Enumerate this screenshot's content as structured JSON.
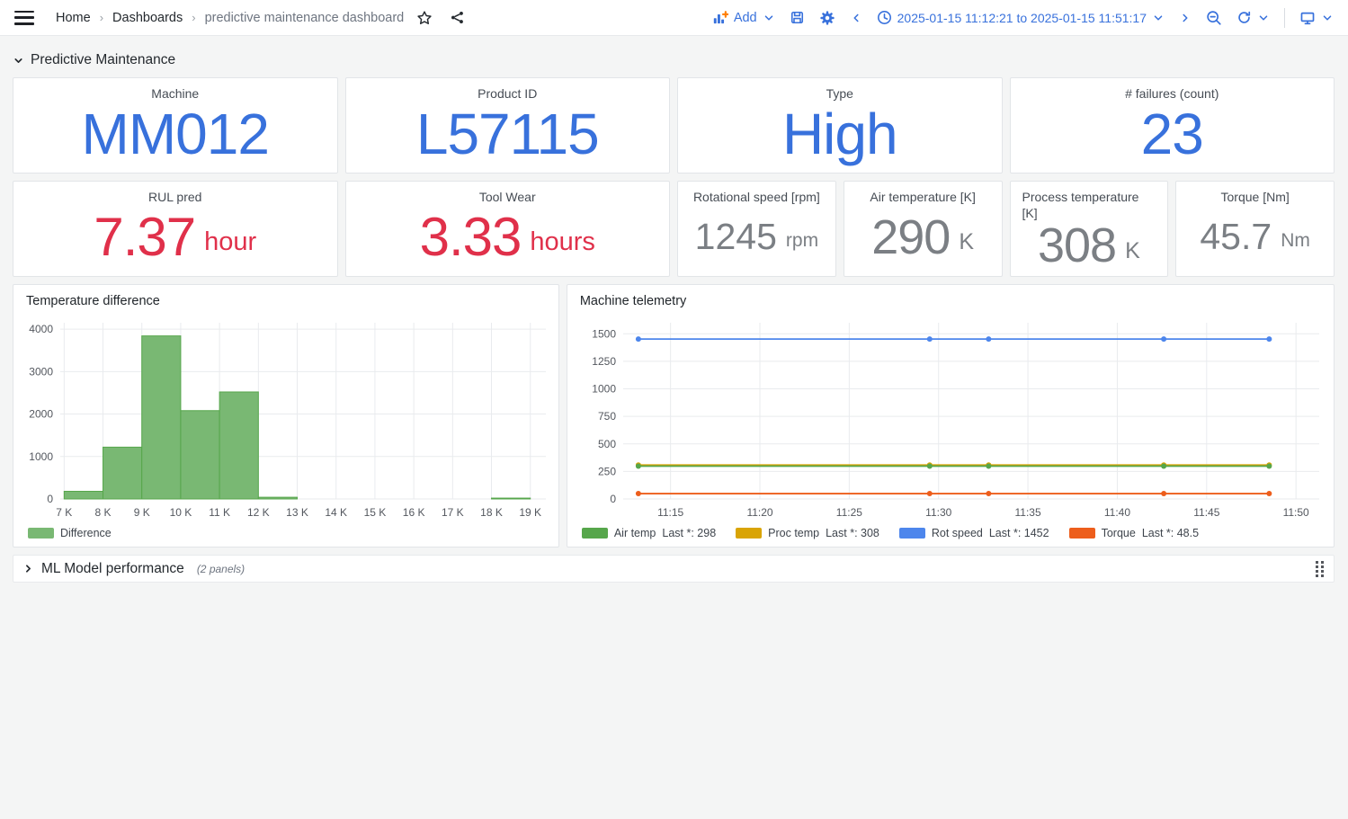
{
  "nav": {
    "breadcrumb": {
      "home": "Home",
      "dashboards": "Dashboards",
      "current": "predictive maintenance dashboard"
    },
    "add_label": "Add",
    "time_range_label": "2025-01-15 11:12:21 to 2025-01-15 11:51:17"
  },
  "rows": {
    "maintenance": {
      "title": "Predictive Maintenance"
    },
    "ml": {
      "title": "ML Model performance",
      "note": "(2 panels)"
    }
  },
  "colors": {
    "accent_blue": "#3871DC",
    "stat_red": "#E0304A",
    "stat_gray": "#7B7F84",
    "plus_orange": "#FF7F00"
  },
  "stats": [
    {
      "title": "Machine",
      "value": "MM012",
      "unit": "",
      "color": "#3871DC"
    },
    {
      "title": "Product ID",
      "value": "L57115",
      "unit": "",
      "color": "#3871DC"
    },
    {
      "title": "Type",
      "value": "High",
      "unit": "",
      "color": "#3871DC"
    },
    {
      "title": "# failures (count)",
      "value": "23",
      "unit": "",
      "color": "#3871DC"
    },
    {
      "title": "RUL pred",
      "value": "7.37",
      "unit": "hour",
      "color": "#E0304A"
    },
    {
      "title": "Tool Wear",
      "value": "3.33",
      "unit": "hours",
      "color": "#E0304A"
    },
    {
      "title": "Rotational speed [rpm]",
      "value": "1245",
      "unit": "rpm",
      "color": "#7B7F84"
    },
    {
      "title": "Air temperature [K]",
      "value": "290",
      "unit": "K",
      "color": "#7B7F84"
    },
    {
      "title": "Process temperature [K]",
      "value": "308",
      "unit": "K",
      "color": "#7B7F84"
    },
    {
      "title": "Torque [Nm]",
      "value": "45.7",
      "unit": "Nm",
      "color": "#7B7F84"
    }
  ],
  "chart_data": [
    {
      "type": "bar",
      "title": "Temperature difference",
      "series_name": "Difference",
      "bin_start": 7000,
      "bin_width": 1000,
      "categories": [
        "7 K",
        "8 K",
        "9 K",
        "10 K",
        "11 K",
        "12 K",
        "13 K",
        "14 K",
        "15 K",
        "16 K",
        "17 K",
        "18 K",
        "19 K"
      ],
      "values": [
        180,
        1220,
        3840,
        2080,
        2520,
        40,
        0,
        0,
        0,
        0,
        0,
        20
      ],
      "xlabel": "",
      "ylabel": "",
      "yticks": [
        0,
        1000,
        2000,
        3000,
        4000
      ],
      "ylim": [
        0,
        4150
      ],
      "bar_color": "#79B873",
      "bar_stroke": "#56A64B",
      "grid": true,
      "legend_position": "bottom"
    },
    {
      "type": "line",
      "title": "Machine telemetry",
      "x_times": [
        "11:13",
        "11:29",
        "11:33",
        "11:43",
        "11:49"
      ],
      "x_minutes": [
        13.2,
        29.5,
        32.8,
        42.6,
        48.5
      ],
      "xlim_minutes": [
        12.35,
        51.3
      ],
      "xticks": [
        {
          "minute": 15,
          "label": "11:15"
        },
        {
          "minute": 20,
          "label": "11:20"
        },
        {
          "minute": 25,
          "label": "11:25"
        },
        {
          "minute": 30,
          "label": "11:30"
        },
        {
          "minute": 35,
          "label": "11:35"
        },
        {
          "minute": 40,
          "label": "11:40"
        },
        {
          "minute": 45,
          "label": "11:45"
        },
        {
          "minute": 50,
          "label": "11:50"
        }
      ],
      "yticks": [
        0,
        250,
        500,
        750,
        1000,
        1250,
        1500
      ],
      "ylim": [
        0,
        1600
      ],
      "series": [
        {
          "name": "Air temp",
          "legend_value": "Last *: 298",
          "value": 298,
          "color": "#56A64B"
        },
        {
          "name": "Proc temp",
          "legend_value": "Last *: 308",
          "value": 308,
          "color": "#D9A404"
        },
        {
          "name": "Rot speed",
          "legend_value": "Last *: 1452",
          "value": 1452,
          "color": "#4D86EC"
        },
        {
          "name": "Torque",
          "legend_value": "Last *: 48.5",
          "value": 48.5,
          "color": "#ED5E1C"
        }
      ],
      "grid": true,
      "legend_position": "bottom"
    }
  ]
}
